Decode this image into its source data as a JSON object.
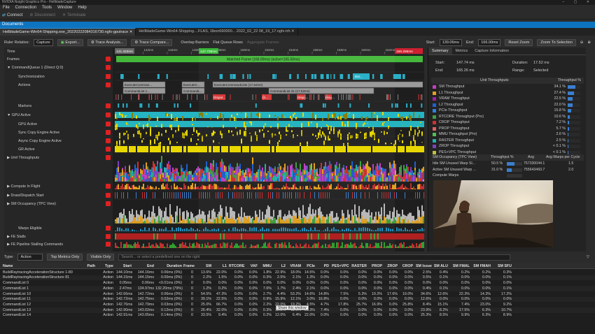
{
  "window": {
    "title": "NVIDIA Nsight Graphics Pro - HellbladeCapture",
    "controls": "–  ▢  ✕"
  },
  "menu": [
    "File",
    "Connection",
    "Tools",
    "Window",
    "Help"
  ],
  "toolbar": {
    "connect": "Connect",
    "disconnect": "Disconnect",
    "terminate": "Terminate"
  },
  "documents_title": "Documents",
  "tabs": [
    {
      "label": "HellbladeGame-Win64-Shipping.exe_20220222084316730.ngfx-gputrace ✕",
      "active": true
    },
    {
      "label": "HellbladeGame-Win64-Shipping....FLAS, 1lbon660000... 2022_02_22 08_19_17.ngfx-trh  ✕",
      "active": false
    }
  ],
  "controls": {
    "ruler_label": "Ruler Relative:",
    "ruler_value": "Capture",
    "export": "Export...",
    "trace_analysis": "Trace Analysis...",
    "trace_compare": "Trace Compare...",
    "overlap_barriers": "Overlap Barriers",
    "flat_queue_rows": "Flat Queue Rows",
    "aggregate_frames": "Aggregate Frames",
    "start_label": "Start:",
    "start_value": "139.06ms",
    "end_label": "End:",
    "end_value": "166.00ms",
    "reset_zoom": "Reset Zoom",
    "zoom_selection": "Zoom To Selection"
  },
  "timeline": {
    "ruler_markers": [
      "141.423ms",
      "147.736ms",
      "165.296ms"
    ],
    "ticks": [
      "140ms",
      "142ms",
      "144ms",
      "146ms",
      "148ms",
      "150ms",
      "152ms",
      "154ms",
      "156ms",
      "158ms",
      "160ms",
      "162ms",
      "164ms"
    ],
    "frame_label": "Matched Frame (166.00ms) (active=165.50ms)",
    "rows": [
      {
        "label": "Time",
        "indent": 0,
        "box": "none"
      },
      {
        "label": "Frames",
        "indent": 0,
        "box": "red"
      },
      {
        "label": "▼ CommandQueue 1 (Direct Q:0)",
        "indent": 0,
        "box": "red"
      },
      {
        "label": "Synchronization",
        "indent": 2,
        "box": "red"
      },
      {
        "label": "Actions",
        "indent": 2,
        "box": "red"
      },
      {
        "label": "Markers",
        "indent": 2,
        "box": "red"
      },
      {
        "label": "▼ GPU Active",
        "indent": 0,
        "box": "red"
      },
      {
        "label": "GPU Active",
        "indent": 2,
        "box": "red"
      },
      {
        "label": "Sync Copy Engine Active",
        "indent": 2,
        "box": "red"
      },
      {
        "label": "Async Copy Engine Active",
        "indent": 2,
        "box": "red"
      },
      {
        "label": "GR Active",
        "indent": 2,
        "box": "red"
      },
      {
        "label": "▶ Unit Throughputs",
        "indent": 0,
        "box": "red"
      },
      {
        "label": "▶ Compute In Flight",
        "indent": 0,
        "box": "red"
      },
      {
        "label": "▶ Draw/Dispatch Start",
        "indent": 0,
        "box": "red"
      },
      {
        "label": "▶ SM Occupancy (TPC View)",
        "indent": 0,
        "box": "red"
      },
      {
        "label": "Warps Eligible",
        "indent": 2,
        "box": "red"
      },
      {
        "label": "▶ FE Stalls",
        "indent": 0,
        "box": "red"
      },
      {
        "label": "▶ FE Pipeline Stalling Commands",
        "indent": 0,
        "box": "red"
      }
    ],
    "action_labels": [
      "ExecuteComman...",
      "CommandList 1...",
      "ExecuteC...",
      "CommandL...",
      "ExecuteCommandLists (17.52ms)",
      "CommandList 31 (17.52ms)",
      "Bar...",
      "Dispat...",
      "Di...",
      "Dispa...",
      "Disp..."
    ]
  },
  "right_panel": {
    "tabs": [
      "Summary",
      "Metrics",
      "Capture Information"
    ],
    "start_label": "Start:",
    "start_value": "147.74 ms",
    "end_label": "End:",
    "end_value": "165.26 ms",
    "duration_label": "Duration:",
    "duration_value": "17.52 ms",
    "range_label": "Range:",
    "range_value": "Selected",
    "thr_header": [
      "Unit Throughputs",
      "Throughput %"
    ],
    "throughputs": [
      {
        "name": "SM Throughput",
        "pct": "34.1 %",
        "frac": 0.341,
        "color": "#c040c0"
      },
      {
        "name": "L1 Throughput",
        "pct": "27.4 %",
        "frac": 0.274,
        "color": "#e0a020"
      },
      {
        "name": "VRAM Throughput",
        "pct": "22.5 %",
        "frac": 0.225,
        "color": "#a020a0"
      },
      {
        "name": "L2 Throughput",
        "pct": "22.0 %",
        "frac": 0.22,
        "color": "#2060d0"
      },
      {
        "name": "PCIe Throughput",
        "pct": "15.8 %",
        "frac": 0.158,
        "color": "#3080e0"
      },
      {
        "name": "RTCORE Throughput (Pro)",
        "pct": "10.6 %",
        "frac": 0.106,
        "color": "#40a040"
      },
      {
        "name": "CROP Throughput",
        "pct": "7.2 %",
        "frac": 0.072,
        "color": "#d03030"
      },
      {
        "name": "PROP Throughput",
        "pct": "5.7 %",
        "frac": 0.057,
        "color": "#e06060"
      },
      {
        "name": "MMU Throughput (Pro)",
        "pct": "2.6 %",
        "frac": 0.026,
        "color": "#50c050"
      },
      {
        "name": "RASTER Throughput",
        "pct": "2.5 %",
        "frac": 0.025,
        "color": "#20b0b0"
      },
      {
        "name": "ZROP Throughput",
        "pct": "< 0.1 %",
        "frac": 0.001,
        "color": "#8040c0"
      },
      {
        "name": "PES+VPC Throughput",
        "pct": "< 0.1 %",
        "frac": 0.001,
        "color": "#c0c040"
      }
    ],
    "sm_header": [
      "SM Occupancy (TPC View)",
      "Throughput %",
      "Avg",
      "Avg Warps per Cycle"
    ],
    "sm_rows": [
      {
        "name": "Idle SM Unused Warp Sl...",
        "pct": "50.5 %",
        "avg": "757330044.1",
        "warps": "1.5"
      },
      {
        "name": "Active SM Unused Warp ...",
        "pct": "31.0 %",
        "avg": "755643460.7",
        "warps": "2.0"
      },
      {
        "name": "Compute Warps",
        "pct": "",
        "avg": "",
        "warps": ""
      }
    ]
  },
  "filter": {
    "type_label": "Type:",
    "type_value": "Action",
    "top_metrics": "Top Metrics Only",
    "visible_only": "Visible Only",
    "search_placeholder": "Search... or select a predefined one on the right"
  },
  "table": {
    "columns": [
      "Name",
      "Path",
      "Type",
      "Start",
      "End",
      "Duration",
      "Frame",
      "SM",
      "L1",
      "RTCORE",
      "VAF",
      "MMU",
      "L2",
      "VRAM",
      "PCIe",
      "PD",
      "PES+VPC",
      "RASTER",
      "PROP",
      "ZROP",
      "CROP",
      "SM Issue",
      "SM ALU",
      "SM FMAL",
      "SM FMAH",
      "SM SFU"
    ],
    "rows": [
      [
        "BuildRaytracingAccelerationStructure 1-80",
        "",
        "Action",
        "144.10ms",
        "144.16ms",
        "0.06ms (0%)",
        "0",
        "13.6%",
        "22.0%",
        "0.0%",
        "0.0%",
        "1.8%",
        "22.9%",
        "18.0%",
        "14.5%",
        "0.0%",
        "0.0%",
        "0.0%",
        "0.0%",
        "0.0%",
        "0.0%",
        "2.5%",
        "0.4%",
        "0.2%",
        "0.2%",
        "0.3%"
      ],
      [
        "BuildRaytracingAccelerationStructure 81",
        "",
        "Action",
        "144.15ms",
        "144.15ms",
        "0.00ms (0%)",
        "0",
        "2.2%",
        "1.5%",
        "0.0%",
        "0.0%",
        "0.3%",
        "2.5%",
        "2.1%",
        "1.3%",
        "0.0%",
        "0.0%",
        "0.0%",
        "0.0%",
        "0.0%",
        "0.0%",
        "0.5%",
        "0.1%",
        "0.0%",
        "0.0%",
        "0.1%"
      ],
      [
        "CommandList 0",
        "",
        "Action",
        "0.05ms",
        "0.06ms",
        "<0.01ms (0%)",
        "0",
        "0.0%",
        "0.0%",
        "0.0%",
        "0.0%",
        "0.0%",
        "0.0%",
        "0.0%",
        "0.0%",
        "0.0%",
        "0.0%",
        "0.0%",
        "0.0%",
        "0.0%",
        "0.0%",
        "0.0%",
        "0.0%",
        "0.0%",
        "0.0%",
        "0.0%"
      ],
      [
        "CommandList 1",
        "",
        "Action",
        "2.47ms",
        "134.97ms",
        "132.20ms (79%)",
        "0",
        "1.2%",
        "0.2%",
        "0.0%",
        "0.0%",
        "7.6%",
        "1.7%",
        "2.4%",
        "2.1%",
        "0.0%",
        "0.0%",
        "0.0%",
        "0.0%",
        "0.0%",
        "0.0%",
        "0.4%",
        "0.1%",
        "0.0%",
        "0.0%",
        "0.1%"
      ],
      [
        "CommandList 10",
        "",
        "Action",
        "142.66ms",
        "142.72ms",
        "0.06ms (0%)",
        "0",
        "54.5%",
        "47.3%",
        "0.0%",
        "0.0%",
        "2.7%",
        "4.4%",
        "53.2%",
        "14.6%",
        "14.8%",
        "7.5%",
        "5.3%",
        "19.2%",
        "17.6%",
        "19.0%",
        "34.6%",
        "12.6%",
        "22.3%",
        "14.3%",
        "17.2%"
      ],
      [
        "CommandList 11",
        "",
        "Action",
        "142.72ms",
        "142.75ms",
        "0.02ms (0%)",
        "0",
        "39.1%",
        "22.5%",
        "0.0%",
        "0.0%",
        "0.9%",
        "15.9%",
        "12.1%",
        "3.0%",
        "16.8%",
        "0.0%",
        "0.0%",
        "0.0%",
        "0.0%",
        "0.0%",
        "12.6%",
        "0.0%",
        "0.0%",
        "0.0%",
        "0.0%"
      ],
      [
        "CommandList 12",
        "",
        "Action",
        "142.76ms",
        "142.79ms",
        "0.03ms (0%)",
        "0",
        "25.0%",
        "66.7%",
        "0.0%",
        "0.0%",
        "2.2%",
        "22.0%",
        "19.2%",
        "4.5%",
        "4.7%",
        "17.8%",
        "25.7%",
        "16.9%",
        "0.0%",
        "25.8%",
        "8.4%",
        "15.1%",
        "7.4%",
        "23.0%",
        "9.2%"
      ],
      [
        "CommandList 13",
        "",
        "Action",
        "142.90ms",
        "143.02ms",
        "0.12ms (0%)",
        "0",
        "26.4%",
        "32.0%",
        "0.0%",
        "0.0%",
        "0.3%",
        "12.3%",
        "11.6%",
        "23.3%",
        "7.4%",
        "0.0%",
        "0.0%",
        "0.0%",
        "0.0%",
        "0.0%",
        "23.9%",
        "8.2%",
        "17.5%",
        "6.3%",
        "10.7%"
      ],
      [
        "CommandList 14",
        "",
        "Action",
        "142.91ms",
        "143.05ms",
        "0.14ms (0%)",
        "0",
        "33.5%",
        "9.4%",
        "0.0%",
        "0.0%",
        "0.2%",
        "12.0%",
        "6.4%",
        "22.0%",
        "0.0%",
        "0.0%",
        "0.0%",
        "0.0%",
        "0.0%",
        "0.0%",
        "25.3%",
        "8.5%",
        "9.9%",
        "6.3%",
        "8.9%"
      ]
    ]
  },
  "tooltip": "Share this window",
  "colors": {
    "accent": "#0e74c0",
    "track_bg": "#1e1e1e",
    "gpu_teal": "#26b5c0",
    "gr_yellow": "#e8d800",
    "frame_green": "#44b83a",
    "action_grey": "#8a8a8a"
  }
}
